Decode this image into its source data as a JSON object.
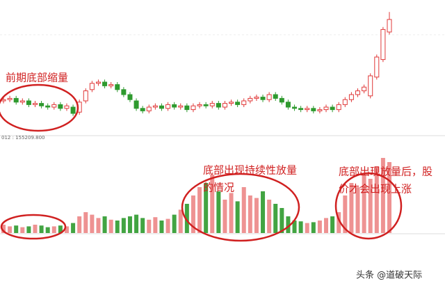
{
  "chart_data": {
    "type": "candlestick",
    "open": [
      25,
      26,
      27,
      24,
      25,
      22,
      23,
      21,
      20,
      22,
      19,
      20,
      16,
      25,
      34,
      39,
      40,
      37,
      38,
      34,
      30,
      25,
      19,
      17,
      20,
      21,
      19,
      22,
      20,
      21,
      18,
      21,
      22,
      21,
      23,
      20,
      23,
      24,
      22,
      25,
      27,
      28,
      26,
      30,
      27,
      24,
      20,
      19,
      18,
      19,
      17,
      18,
      20,
      18,
      22,
      26,
      30,
      33,
      29,
      44,
      58,
      80
    ],
    "high": [
      28,
      29,
      29,
      27,
      27,
      25,
      25,
      23,
      24,
      24,
      23,
      22,
      26,
      35,
      41,
      42,
      42,
      40,
      40,
      36,
      32,
      27,
      21,
      22,
      23,
      23,
      24,
      24,
      23,
      23,
      23,
      24,
      24,
      25,
      25,
      25,
      26,
      26,
      27,
      29,
      30,
      30,
      32,
      32,
      29,
      26,
      22,
      21,
      21,
      21,
      20,
      22,
      22,
      24,
      28,
      32,
      35,
      38,
      47,
      62,
      84,
      96
    ],
    "low": [
      23,
      24,
      22,
      22,
      20,
      20,
      19,
      18,
      18,
      17,
      17,
      13,
      14,
      23,
      32,
      37,
      35,
      35,
      32,
      28,
      24,
      17,
      15,
      15,
      18,
      17,
      17,
      18,
      18,
      16,
      16,
      19,
      19,
      19,
      18,
      18,
      21,
      20,
      20,
      23,
      25,
      24,
      24,
      25,
      22,
      18,
      17,
      16,
      16,
      15,
      15,
      16,
      16,
      16,
      20,
      24,
      28,
      31,
      27,
      42,
      56,
      78
    ],
    "close": [
      26,
      27,
      24,
      25,
      22,
      23,
      21,
      20,
      22,
      19,
      21,
      15,
      24,
      33,
      39,
      40,
      37,
      38,
      34,
      30,
      26,
      19,
      17,
      20,
      21,
      19,
      22,
      20,
      21,
      18,
      21,
      22,
      21,
      23,
      20,
      23,
      24,
      22,
      25,
      27,
      28,
      26,
      30,
      27,
      24,
      20,
      19,
      18,
      19,
      17,
      18,
      20,
      18,
      22,
      26,
      30,
      33,
      36,
      45,
      60,
      82,
      90
    ],
    "volume": [
      10,
      8,
      9,
      7,
      8,
      10,
      9,
      7,
      8,
      9,
      8,
      12,
      20,
      25,
      22,
      18,
      20,
      16,
      15,
      18,
      20,
      22,
      18,
      16,
      19,
      15,
      17,
      22,
      28,
      35,
      45,
      55,
      60,
      70,
      50,
      40,
      48,
      38,
      55,
      45,
      42,
      50,
      40,
      35,
      30,
      20,
      15,
      14,
      12,
      13,
      15,
      18,
      20,
      25,
      45,
      60,
      55,
      70,
      65,
      80,
      90,
      85
    ],
    "ylim": [
      0,
      100
    ],
    "volume_lim": [
      0,
      100
    ],
    "up_color": "#e03838",
    "down_color": "#2e9a2e",
    "volume_label": "012 : 155209.800",
    "annotations": [
      {
        "lines": [
          "前期底部缩量"
        ]
      },
      {
        "lines": [
          "底部出现持续性放量",
          "的情况"
        ]
      },
      {
        "lines": [
          "底部出现放量后，股",
          "价才会出现上涨"
        ]
      }
    ],
    "watermark": "头条 @道破天际"
  }
}
